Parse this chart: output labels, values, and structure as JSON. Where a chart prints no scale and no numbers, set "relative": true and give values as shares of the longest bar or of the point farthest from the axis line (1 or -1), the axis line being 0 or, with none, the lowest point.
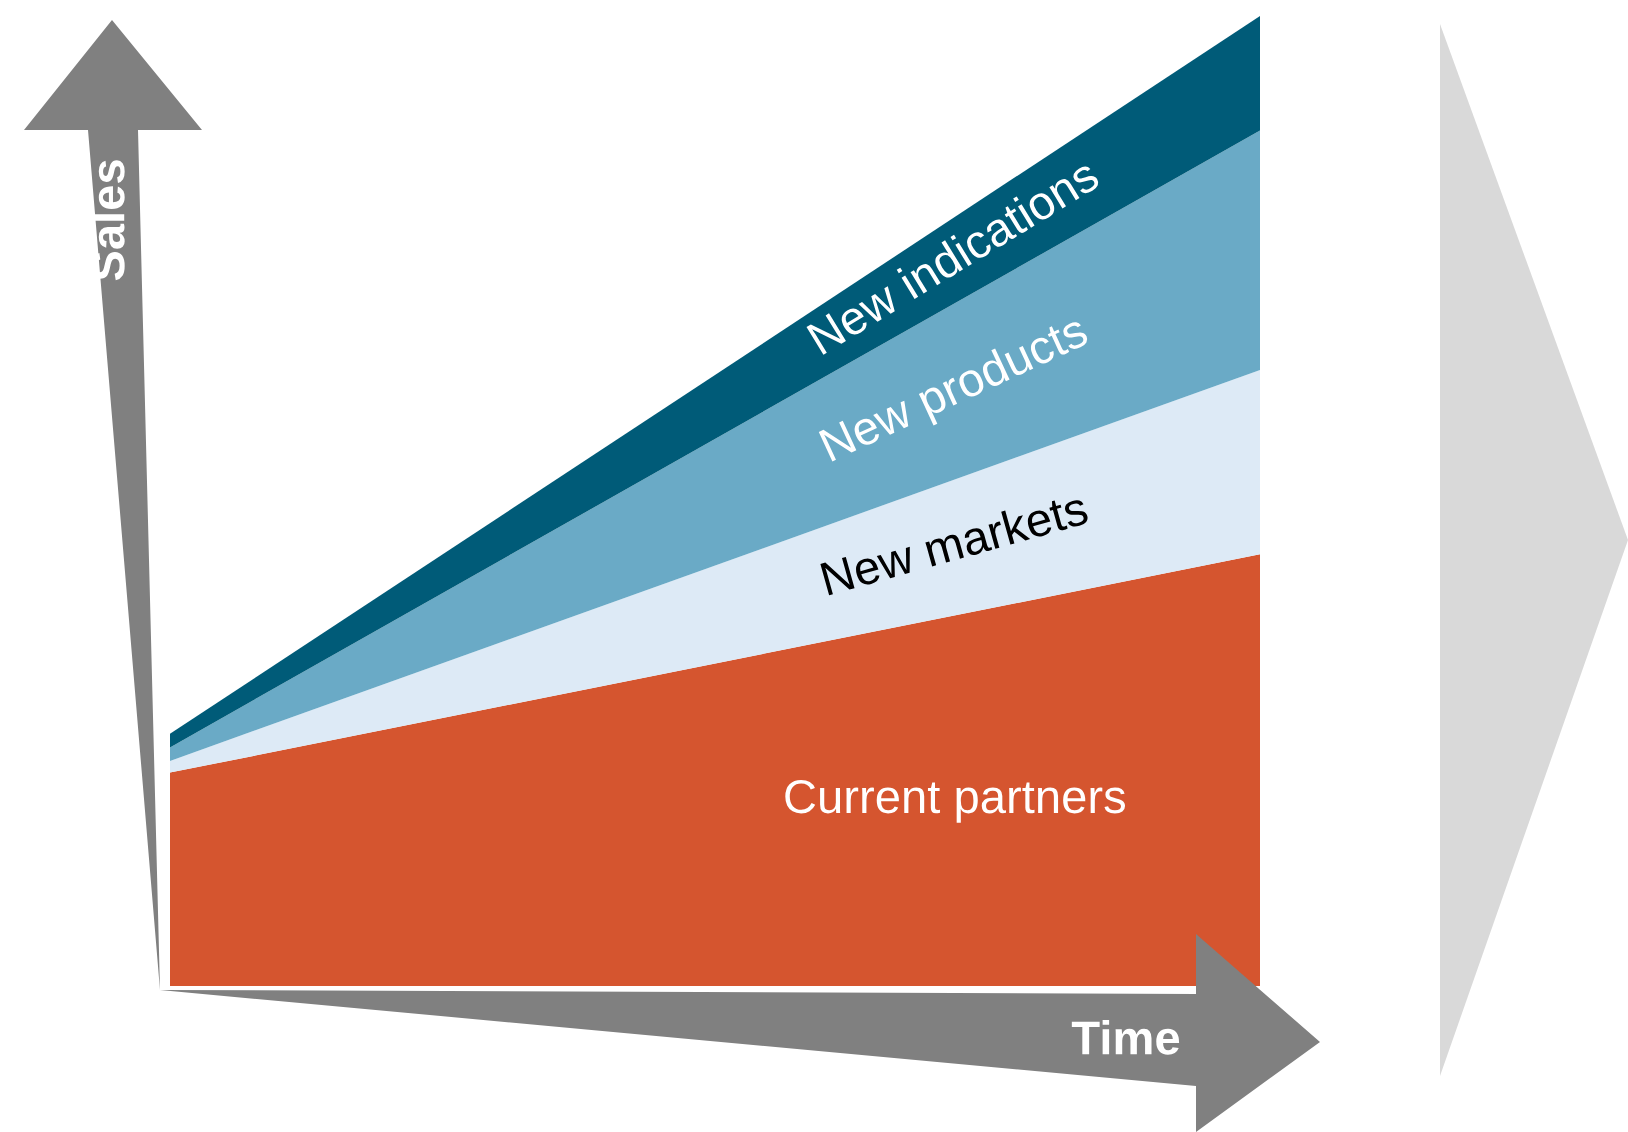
{
  "chart_data": {
    "type": "area",
    "stacked": true,
    "relative": true,
    "xlabel": "Time",
    "ylabel": "Sales",
    "categories": [
      null,
      null
    ],
    "legend": false,
    "series": [
      {
        "name": "Current partners",
        "color": "#d5552f",
        "values": [
          0.22,
          0.445
        ]
      },
      {
        "name": "New markets",
        "color": "#ddeaf6",
        "values": [
          0.012,
          0.19
        ]
      },
      {
        "name": "New products",
        "color": "#6aaac6",
        "values": [
          0.014,
          0.247
        ]
      },
      {
        "name": "New indications",
        "color": "#005b78",
        "values": [
          0.014,
          0.118
        ]
      }
    ]
  }
}
